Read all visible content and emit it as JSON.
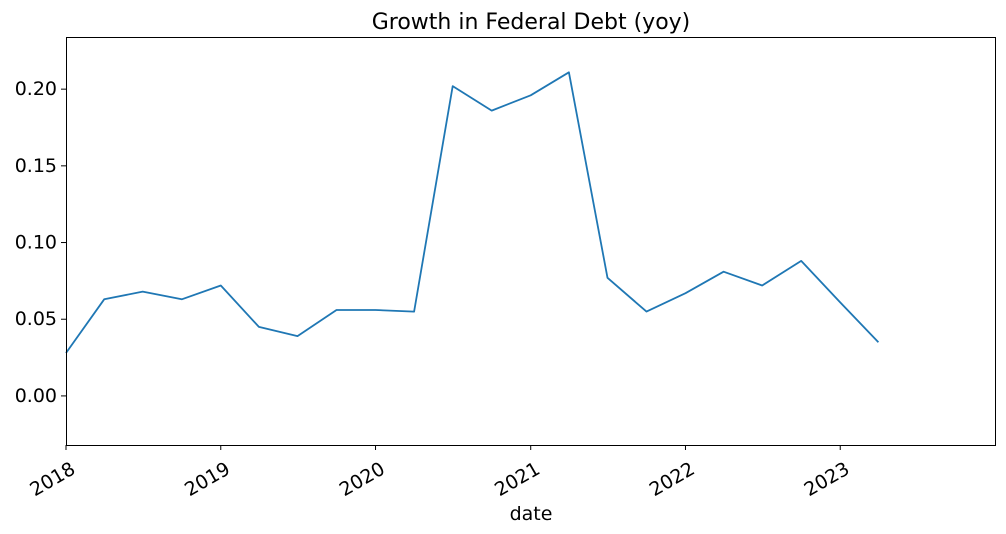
{
  "chart_data": {
    "type": "line",
    "title": "Growth in Federal Debt (yoy)",
    "xlabel": "date",
    "ylabel": "",
    "x_type": "date",
    "xlim": [
      "2018-01-01",
      "2024-01-01"
    ],
    "ylim": [
      -0.032,
      0.234
    ],
    "x_ticks": [
      {
        "value": "2018-01-01",
        "label": "2018"
      },
      {
        "value": "2019-01-01",
        "label": "2019"
      },
      {
        "value": "2020-01-01",
        "label": "2020"
      },
      {
        "value": "2021-01-01",
        "label": "2021"
      },
      {
        "value": "2022-01-01",
        "label": "2022"
      },
      {
        "value": "2023-01-01",
        "label": "2023"
      }
    ],
    "y_ticks": [
      {
        "value": 0.0,
        "label": "0.00"
      },
      {
        "value": 0.05,
        "label": "0.05"
      },
      {
        "value": 0.1,
        "label": "0.10"
      },
      {
        "value": 0.15,
        "label": "0.15"
      },
      {
        "value": 0.2,
        "label": "0.20"
      }
    ],
    "grid": false,
    "legend": "none",
    "series": [
      {
        "color": "#1f77b4",
        "x": [
          "2018-01-01",
          "2018-04-01",
          "2018-07-01",
          "2018-10-01",
          "2019-01-01",
          "2019-04-01",
          "2019-07-01",
          "2019-10-01",
          "2020-01-01",
          "2020-04-01",
          "2020-07-01",
          "2020-10-01",
          "2021-01-01",
          "2021-04-01",
          "2021-07-01",
          "2021-10-01",
          "2022-01-01",
          "2022-04-01",
          "2022-07-01",
          "2022-10-01",
          "2023-01-01",
          "2023-04-01"
        ],
        "values": [
          0.028,
          0.063,
          0.068,
          0.063,
          0.072,
          0.045,
          0.039,
          0.056,
          0.056,
          0.055,
          0.202,
          0.186,
          0.196,
          0.211,
          0.077,
          0.055,
          0.067,
          0.081,
          0.072,
          0.088,
          0.061,
          0.035
        ]
      }
    ]
  }
}
